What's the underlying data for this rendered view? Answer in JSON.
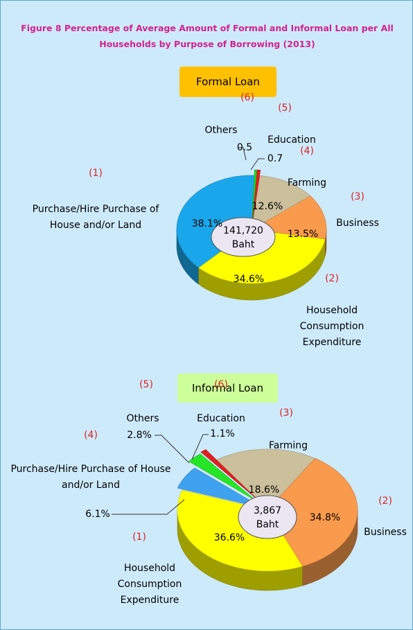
{
  "title": "Figure  8   Percentage of Average Amount of Formal and Informal Loan per All Households by Purpose of Borrowing (2013)",
  "chart_data": [
    {
      "type": "pie",
      "label": "Formal Loan",
      "center_value": "141,720",
      "center_unit": "Baht",
      "numbers": [
        "(1)",
        "(2)",
        "(3)",
        "(4)",
        "(5)",
        "(6)"
      ],
      "categories": [
        "Purchase/Hire Purchase of House and/or Land",
        "Household Consumption Expenditure",
        "Business",
        "Farming",
        "Education",
        "Others"
      ],
      "values": [
        38.1,
        34.6,
        13.5,
        12.6,
        0.7,
        0.5
      ],
      "value_labels": [
        "38.1%",
        "34.6%",
        "13.5%",
        "12.6%",
        "0.7",
        "0.5"
      ],
      "colors": [
        "#1aa6ea",
        "#ffff00",
        "#f99a4c",
        "#cbbf9c",
        "#e02020",
        "#26d426"
      ]
    },
    {
      "type": "pie",
      "label": "Informal Loan",
      "center_value": "3,867",
      "center_unit": "Baht",
      "numbers": [
        "(1)",
        "(2)",
        "(3)",
        "(4)",
        "(5)",
        "(6)"
      ],
      "categories": [
        "Household Consumption Expenditure",
        "Business",
        "Farming",
        "Purchase/Hire Purchase of House and/or Land",
        "Others",
        "Education"
      ],
      "values": [
        36.6,
        34.8,
        18.6,
        6.1,
        2.8,
        1.1
      ],
      "value_labels": [
        "36.6%",
        "34.8%",
        "18.6%",
        "6.1%",
        "2.8%",
        "1.1%"
      ],
      "colors": [
        "#ffff00",
        "#f99a4c",
        "#cbbf9c",
        "#3fa2f0",
        "#26e426",
        "#e02020"
      ]
    }
  ]
}
